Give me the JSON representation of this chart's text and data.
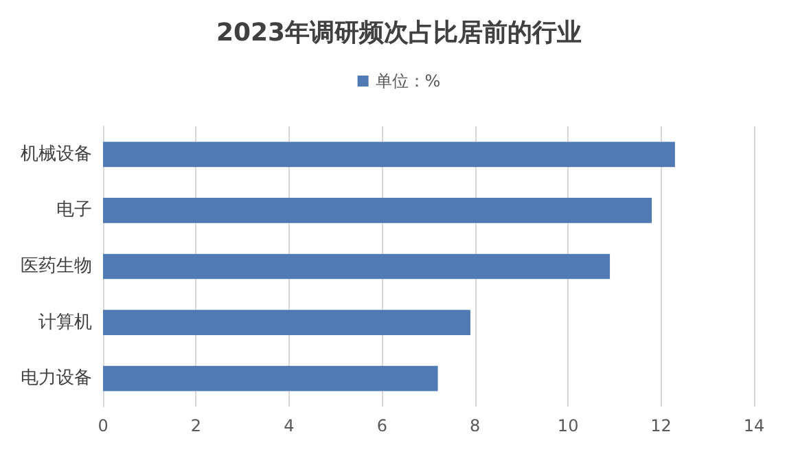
{
  "chart_data": {
    "type": "bar",
    "orientation": "horizontal",
    "title": "2023年调研频次占比居前的行业",
    "categories": [
      "机械设备",
      "电子",
      "医药生物",
      "计算机",
      "电力设备"
    ],
    "series": [
      {
        "name": "单位：%",
        "color": "#4f7ab4",
        "values": [
          12.3,
          11.8,
          10.9,
          7.9,
          7.2
        ]
      }
    ],
    "xlim": [
      0,
      14
    ],
    "xticks": [
      0,
      2,
      4,
      6,
      8,
      10,
      12,
      14
    ],
    "grid": "x",
    "legend": "top"
  }
}
